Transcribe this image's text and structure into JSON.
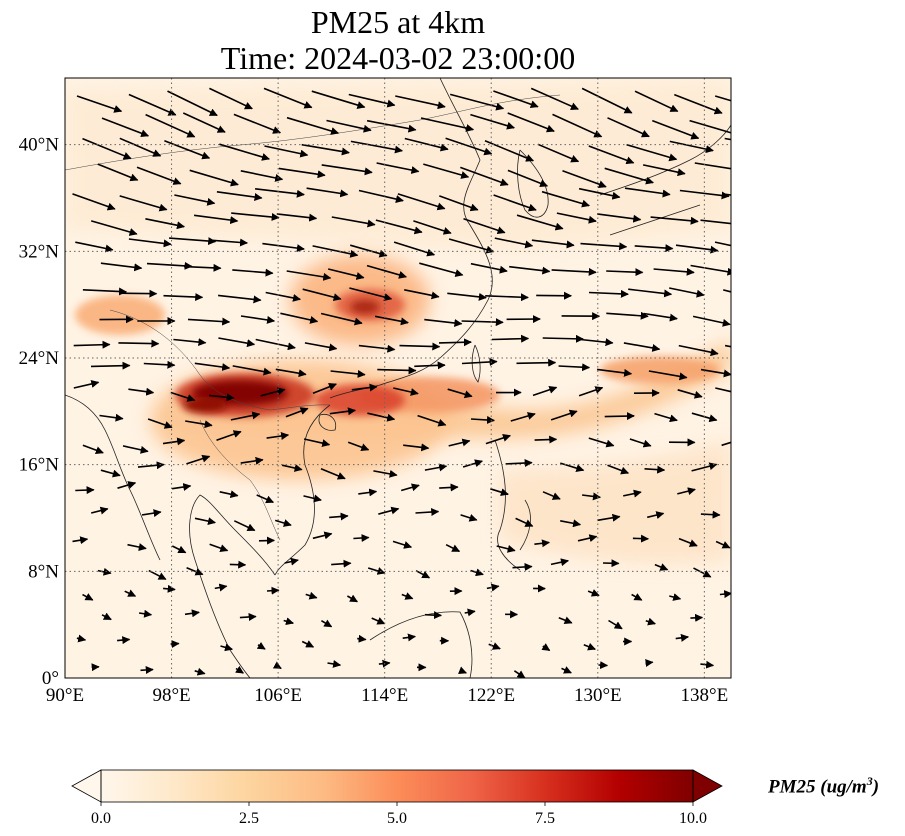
{
  "figure": {
    "title_line1": "PM25 at 4km",
    "title_line2": "Time: 2024-03-02 23:00:00"
  },
  "map": {
    "type": "map",
    "projection": "PlateCarree",
    "lon_range": [
      90,
      140
    ],
    "lat_range": [
      0,
      45
    ],
    "lon_ticks": [
      {
        "value": 90,
        "label": "90°E"
      },
      {
        "value": 98,
        "label": "98°E"
      },
      {
        "value": 106,
        "label": "106°E"
      },
      {
        "value": 114,
        "label": "114°E"
      },
      {
        "value": 122,
        "label": "122°E"
      },
      {
        "value": 130,
        "label": "130°E"
      },
      {
        "value": 138,
        "label": "138°E"
      }
    ],
    "lat_ticks": [
      {
        "value": 0,
        "label": "0°"
      },
      {
        "value": 8,
        "label": "8°N"
      },
      {
        "value": 16,
        "label": "16°N"
      },
      {
        "value": 24,
        "label": "24°N"
      },
      {
        "value": 32,
        "label": "32°N"
      },
      {
        "value": 40,
        "label": "40°N"
      }
    ],
    "gridlines": true,
    "gridline_style": "dotted",
    "colormap": "OrRd",
    "wind_vectors": true,
    "pm25_hotspots": [
      {
        "lon": 103,
        "lat": 21.2,
        "value": 10
      },
      {
        "lon": 100.5,
        "lat": 20.3,
        "value": 9
      },
      {
        "lon": 112,
        "lat": 21,
        "value": 8
      },
      {
        "lon": 114.5,
        "lat": 27.8,
        "value": 7.5
      },
      {
        "lon": 116,
        "lat": 22,
        "value": 6.5
      },
      {
        "lon": 119,
        "lat": 21.5,
        "value": 4.5
      },
      {
        "lon": 95,
        "lat": 27,
        "value": 4
      },
      {
        "lon": 136,
        "lat": 24,
        "value": 3.5
      }
    ]
  },
  "colorbar": {
    "label": "PM25 (ug/m",
    "label_superscript": "3",
    "label_close": ")",
    "vmin": 0,
    "vmax": 10,
    "extend": "both",
    "ticks": [
      {
        "value": 0,
        "label": "0.0"
      },
      {
        "value": 2.5,
        "label": "2.5"
      },
      {
        "value": 5,
        "label": "5.0"
      },
      {
        "value": 7.5,
        "label": "7.5"
      },
      {
        "value": 10,
        "label": "10.0"
      }
    ],
    "colors": [
      "#fff7ec",
      "#fee8c8",
      "#fdd49e",
      "#fdbb84",
      "#fc8d59",
      "#ef6548",
      "#d7301f",
      "#b30000",
      "#7f0000"
    ]
  }
}
